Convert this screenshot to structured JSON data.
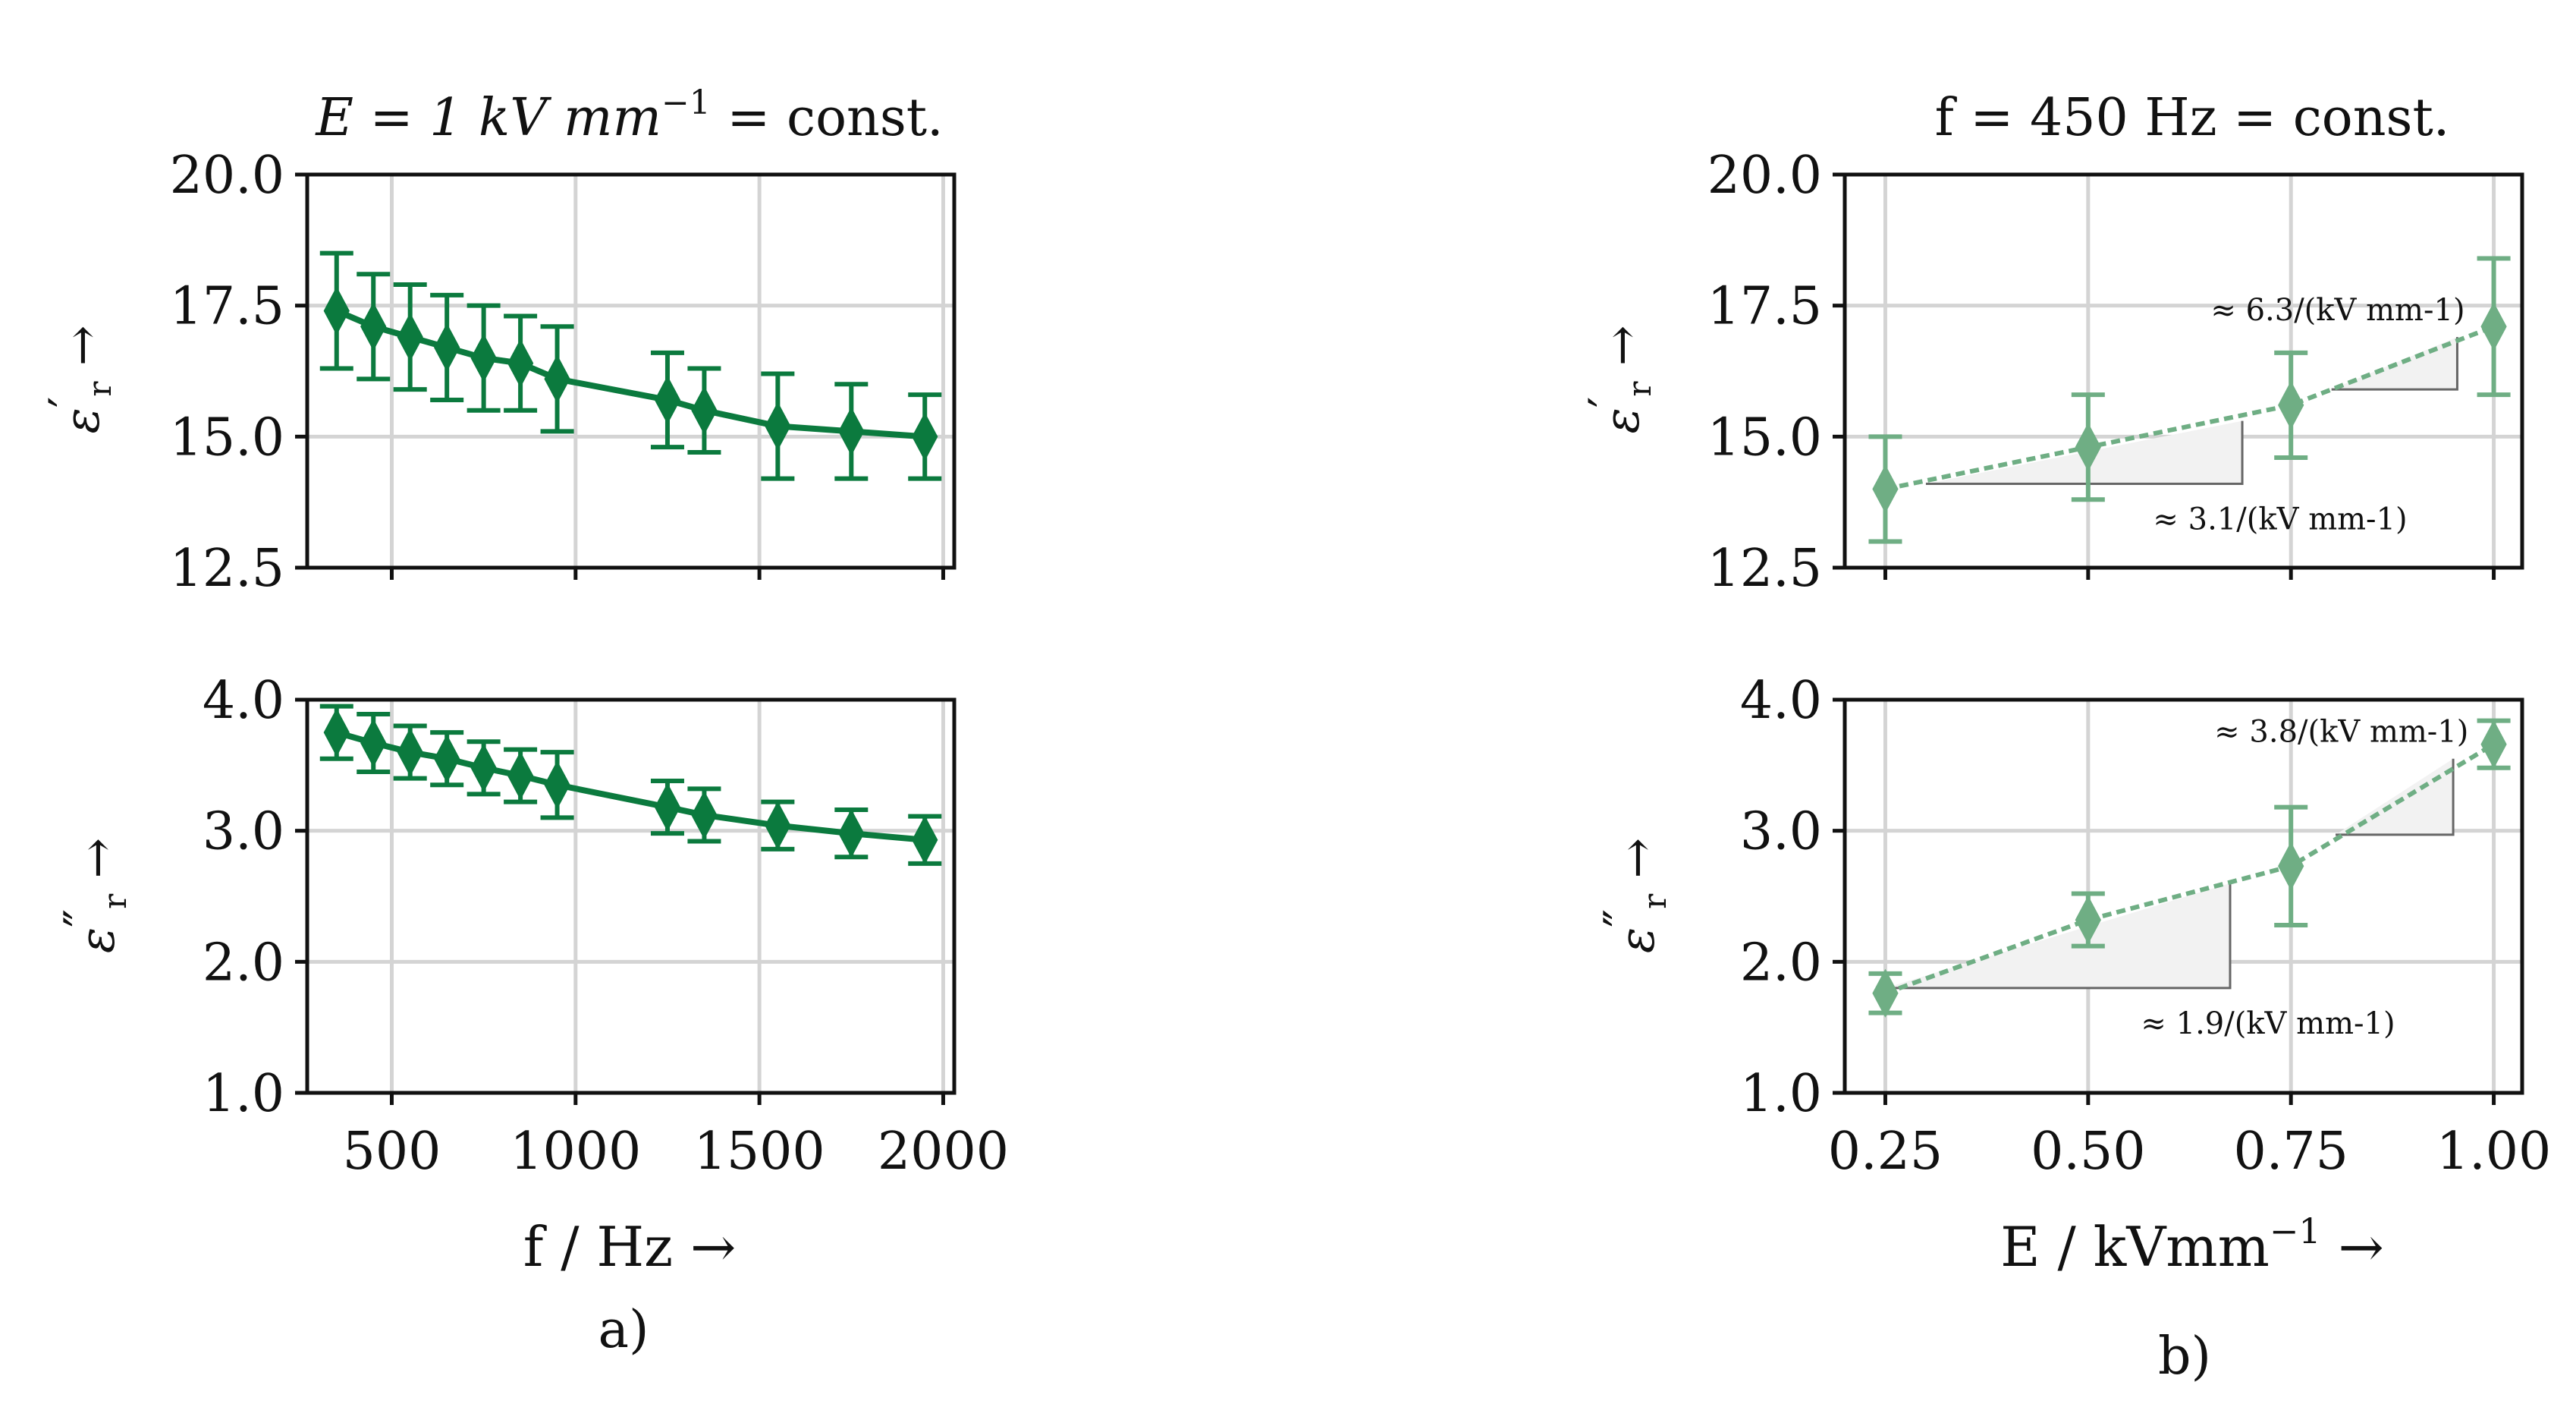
{
  "colors": {
    "series_a": "#0b7a3e",
    "series_b": "#6fae84",
    "grid": "#d4d4d4",
    "wedge_fill": "#f2f2f2",
    "wedge_stroke": "#666666"
  },
  "text": {
    "title_a": "E = 1 kV mm",
    "title_a_exp": "−1",
    "title_a_tail": " = const.",
    "title_b": "f = 450 Hz = const.",
    "xlabel_a": "f  / Hz →",
    "xlabel_b_main": "E  / kVmm",
    "xlabel_b_exp": "−1",
    "xlabel_b_tail": " →",
    "ylabel_top_main": "ε",
    "ylabel_top_prime": "′",
    "ylabel_bottom_prime": "″",
    "ylabel_sub": "r",
    "ylabel_arrow": " →",
    "sub_a": "a)",
    "sub_b": "b)"
  },
  "chart_data": [
    {
      "id": "a-top",
      "type": "line",
      "panel": "a",
      "title": "E = 1 kV mm^-1 = const.",
      "xlabel": "",
      "ylabel": "ε′r →",
      "xlim": [
        270,
        2030
      ],
      "ylim": [
        12.5,
        20.0
      ],
      "xticks": [
        500,
        1000,
        1500,
        2000
      ],
      "yticks": [
        12.5,
        15.0,
        17.5,
        20.0
      ],
      "ytick_labels": [
        "12.5",
        "15.0",
        "17.5",
        "20.0"
      ],
      "grid": true,
      "marker": "thin_diamond",
      "linestyle": "solid",
      "series": [
        {
          "name": "ε′r",
          "x": [
            350,
            450,
            550,
            650,
            750,
            850,
            950,
            1250,
            1350,
            1550,
            1750,
            1950
          ],
          "y": [
            17.4,
            17.1,
            16.9,
            16.7,
            16.5,
            16.4,
            16.1,
            15.7,
            15.5,
            15.2,
            15.1,
            15.0
          ],
          "err": [
            1.1,
            1.0,
            1.0,
            1.0,
            1.0,
            0.9,
            1.0,
            0.9,
            0.8,
            1.0,
            0.9,
            0.8
          ]
        }
      ]
    },
    {
      "id": "a-bottom",
      "type": "line",
      "panel": "a",
      "xlabel": "f / Hz →",
      "ylabel": "ε″r →",
      "xlim": [
        270,
        2030
      ],
      "ylim": [
        1.0,
        4.0
      ],
      "xticks": [
        500,
        1000,
        1500,
        2000
      ],
      "xtick_labels": [
        "500",
        "1000",
        "1500",
        "2000"
      ],
      "yticks": [
        1.0,
        2.0,
        3.0,
        4.0
      ],
      "ytick_labels": [
        "1.0",
        "2.0",
        "3.0",
        "4.0"
      ],
      "grid": true,
      "marker": "thin_diamond",
      "linestyle": "solid",
      "series": [
        {
          "name": "ε″r",
          "x": [
            350,
            450,
            550,
            650,
            750,
            850,
            950,
            1250,
            1350,
            1550,
            1750,
            1950
          ],
          "y": [
            3.75,
            3.67,
            3.6,
            3.55,
            3.48,
            3.42,
            3.35,
            3.18,
            3.12,
            3.04,
            2.98,
            2.93
          ],
          "err": [
            0.2,
            0.22,
            0.2,
            0.2,
            0.2,
            0.2,
            0.25,
            0.2,
            0.2,
            0.18,
            0.18,
            0.18
          ]
        }
      ]
    },
    {
      "id": "b-top",
      "type": "line",
      "panel": "b",
      "title": "f = 450 Hz = const.",
      "xlabel": "",
      "ylabel": "ε′r →",
      "xlim": [
        0.2,
        1.035
      ],
      "ylim": [
        12.5,
        20.0
      ],
      "xticks": [
        0.25,
        0.5,
        0.75,
        1.0
      ],
      "yticks": [
        12.5,
        15.0,
        17.5,
        20.0
      ],
      "ytick_labels": [
        "12.5",
        "15.0",
        "17.5",
        "20.0"
      ],
      "grid": true,
      "marker": "thin_diamond",
      "linestyle": "dashed",
      "series": [
        {
          "name": "ε′r",
          "x": [
            0.25,
            0.5,
            0.75,
            1.0
          ],
          "y": [
            14.0,
            14.8,
            15.6,
            17.1
          ],
          "err": [
            1.0,
            1.0,
            1.0,
            1.3
          ]
        }
      ],
      "annotations": [
        {
          "text": "≈ 3.1/(kV mm-1)",
          "wedge": {
            "x1": 0.3,
            "x2": 0.69,
            "y1": 14.1,
            "y2": 15.3
          },
          "placement": "below"
        },
        {
          "text": "≈ 6.3/(kV mm-1)",
          "wedge": {
            "x1": 0.8,
            "x2": 0.955,
            "y1": 15.9,
            "y2": 16.9
          },
          "placement": "above"
        }
      ]
    },
    {
      "id": "b-bottom",
      "type": "line",
      "panel": "b",
      "xlabel": "E / kVmm^-1 →",
      "ylabel": "ε″r →",
      "xlim": [
        0.2,
        1.035
      ],
      "ylim": [
        1.0,
        4.0
      ],
      "xticks": [
        0.25,
        0.5,
        0.75,
        1.0
      ],
      "xtick_labels": [
        "0.25",
        "0.50",
        "0.75",
        "1.00"
      ],
      "yticks": [
        1.0,
        2.0,
        3.0,
        4.0
      ],
      "ytick_labels": [
        "1.0",
        "2.0",
        "3.0",
        "4.0"
      ],
      "grid": true,
      "marker": "thin_diamond",
      "linestyle": "dashed",
      "series": [
        {
          "name": "ε″r",
          "x": [
            0.25,
            0.5,
            0.75,
            1.0
          ],
          "y": [
            1.76,
            2.32,
            2.73,
            3.66
          ],
          "err": [
            0.15,
            0.2,
            0.45,
            0.18
          ]
        }
      ],
      "annotations": [
        {
          "text": "≈ 1.9/(kV mm-1)",
          "wedge": {
            "x1": 0.25,
            "x2": 0.675,
            "y1": 1.8,
            "y2": 2.6
          },
          "placement": "below"
        },
        {
          "text": "≈ 3.8/(kV mm-1)",
          "wedge": {
            "x1": 0.805,
            "x2": 0.95,
            "y1": 2.97,
            "y2": 3.55
          },
          "placement": "above"
        }
      ]
    }
  ]
}
